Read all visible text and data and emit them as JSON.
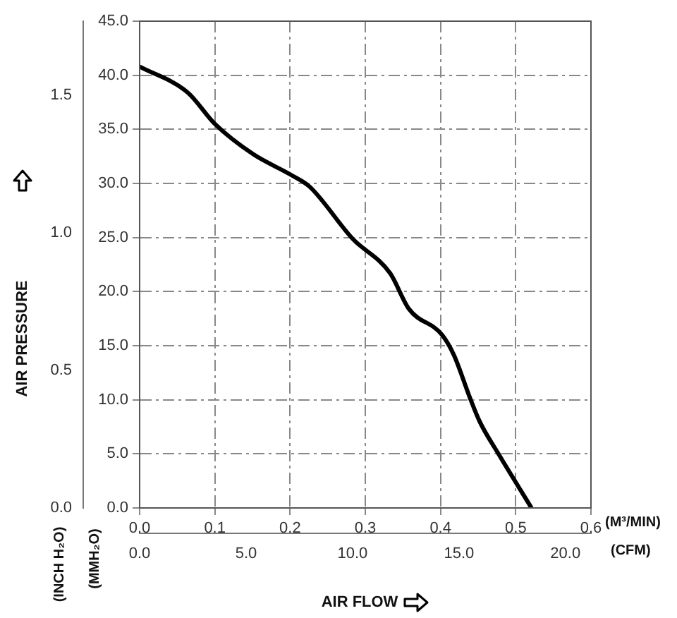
{
  "chart_data": {
    "type": "line",
    "x": [
      0,
      0.064,
      0.1,
      0.151,
      0.201,
      0.226,
      0.283,
      0.333,
      0.358,
      0.402,
      0.418,
      0.439,
      0.452,
      0.477,
      0.521
    ],
    "series": [
      {
        "color": "#000000",
        "values": [
          40.8,
          38.4,
          35.5,
          32.7,
          30.8,
          29.7,
          24.9,
          21.7,
          18.4,
          16.0,
          14.1,
          10.2,
          8.0,
          5.0,
          0
        ]
      }
    ],
    "xlabel": "(M³/MIN)",
    "x2label": "(CFM)",
    "ylabel": "(MMH₂O)",
    "y2label": "(INCH H₂O)",
    "annotations": [
      "AIR PRESSURE",
      "AIR FLOW"
    ],
    "xlim": [
      0,
      0.6
    ],
    "xticks": [
      {
        "value": 0,
        "label": "0.0"
      },
      {
        "value": 0.1,
        "label": "0.1"
      },
      {
        "value": 0.2,
        "label": "0.2"
      },
      {
        "value": 0.3,
        "label": "0.3"
      },
      {
        "value": 0.4,
        "label": "0.4"
      },
      {
        "value": 0.5,
        "label": "0.5"
      },
      {
        "value": 0.6,
        "label": "0.6"
      }
    ],
    "x2lim": [
      0,
      21.2
    ],
    "x2ticks": [
      {
        "value": 0,
        "label": "0.0"
      },
      {
        "value": 5,
        "label": "5.0"
      },
      {
        "value": 10,
        "label": "10.0"
      },
      {
        "value": 15,
        "label": "15.0"
      },
      {
        "value": 20,
        "label": "20.0"
      }
    ],
    "ylim": [
      0,
      45
    ],
    "yticks": [
      {
        "value": 0,
        "label": "0.0"
      },
      {
        "value": 5,
        "label": "5.0"
      },
      {
        "value": 10,
        "label": "10.0"
      },
      {
        "value": 15,
        "label": "15.0"
      },
      {
        "value": 20,
        "label": "20.0"
      },
      {
        "value": 25,
        "label": "25.0"
      },
      {
        "value": 30,
        "label": "30.0"
      },
      {
        "value": 35,
        "label": "35.0"
      },
      {
        "value": 40,
        "label": "40.0"
      },
      {
        "value": 45,
        "label": "45.0"
      }
    ],
    "y2lim": [
      0,
      1.77
    ],
    "y2ticks": [
      {
        "value": 0,
        "label": "0.0"
      },
      0.5,
      {
        "value": 1,
        "label": "1.0"
      },
      1.5
    ],
    "grid": true,
    "marker": "none",
    "line_style": "solid"
  }
}
